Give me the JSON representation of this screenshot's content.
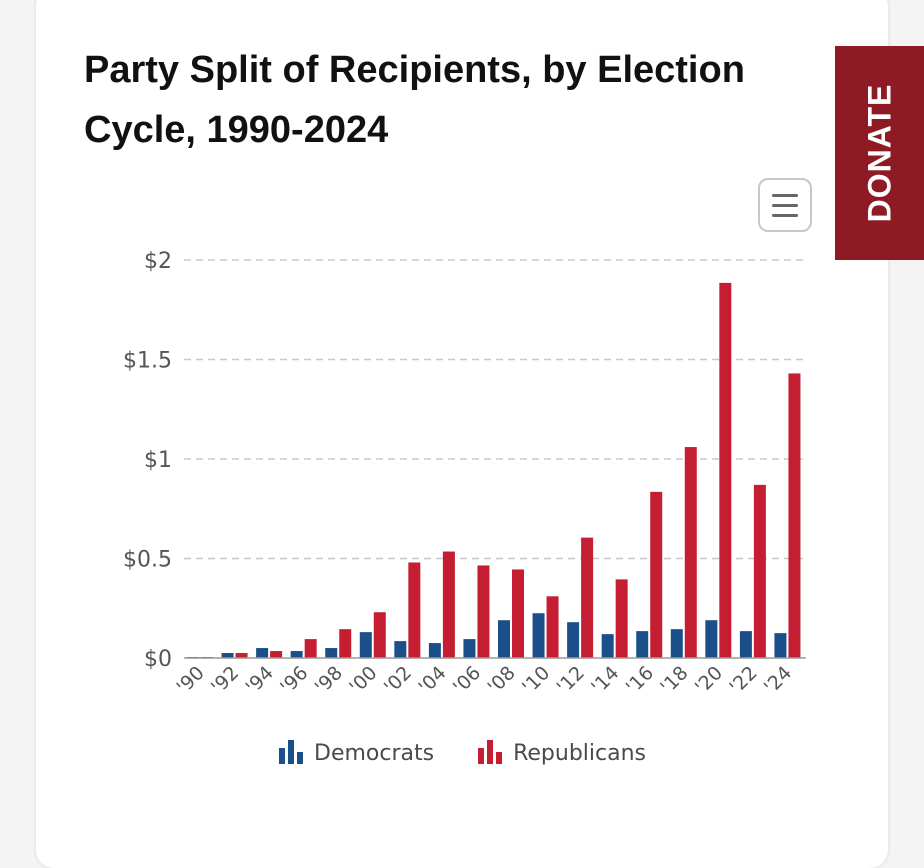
{
  "title": "Party Split of Recipients, by Election Cycle, 1990-2024",
  "donate_label": "DONATE",
  "colors": {
    "democrats": "#1b4f8a",
    "republicans": "#c51e32",
    "donate_bg": "#8e1b24"
  },
  "icons": {
    "menu": "hamburger-menu-icon",
    "legend_democrats": "bar-chart-icon",
    "legend_republicans": "bar-chart-icon"
  },
  "chart_data": {
    "type": "bar",
    "title": "Party Split of Recipients, by Election Cycle, 1990-2024",
    "xlabel": "",
    "ylabel": "",
    "ylim": [
      0,
      2
    ],
    "yticks": [
      0,
      0.5,
      1,
      1.5,
      2
    ],
    "ytick_labels": [
      "$0",
      "$0.5",
      "$1",
      "$1.5",
      "$2"
    ],
    "grid": true,
    "legend_position": "bottom-center",
    "categories": [
      "'90",
      "'92",
      "'94",
      "'96",
      "'98",
      "'00",
      "'02",
      "'04",
      "'06",
      "'08",
      "'10",
      "'12",
      "'14",
      "'16",
      "'18",
      "'20",
      "'22",
      "'24"
    ],
    "series": [
      {
        "name": "Democrats",
        "values": [
          0.005,
          0.025,
          0.05,
          0.035,
          0.05,
          0.13,
          0.085,
          0.075,
          0.095,
          0.19,
          0.225,
          0.18,
          0.12,
          0.135,
          0.145,
          0.19,
          0.135,
          0.125
        ]
      },
      {
        "name": "Republicans",
        "values": [
          0.005,
          0.025,
          0.035,
          0.095,
          0.145,
          0.23,
          0.48,
          0.535,
          0.465,
          0.445,
          0.31,
          0.605,
          0.395,
          0.835,
          1.06,
          1.885,
          0.87,
          1.43
        ]
      }
    ]
  }
}
